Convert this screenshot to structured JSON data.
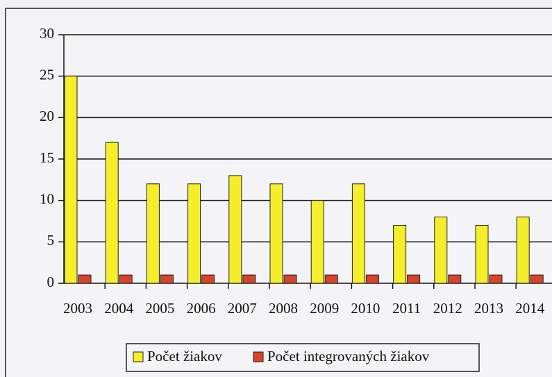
{
  "chart_data": {
    "type": "bar",
    "categories": [
      "2003",
      "2004",
      "2005",
      "2006",
      "2007",
      "2008",
      "2009",
      "2010",
      "2011",
      "2012",
      "2013",
      "2014"
    ],
    "series": [
      {
        "name": "Počet žiakov",
        "color": "#f5ee2a",
        "values": [
          25,
          17,
          12,
          12,
          13,
          12,
          10,
          12,
          7,
          8,
          7,
          8
        ]
      },
      {
        "name": "Počet integrovaných žiakov",
        "color": "#d9432a",
        "values": [
          1,
          1,
          1,
          1,
          1,
          1,
          1,
          1,
          1,
          1,
          1,
          1
        ]
      }
    ],
    "ylim": [
      0,
      30
    ],
    "yticks": [
      0,
      5,
      10,
      15,
      20,
      25,
      30
    ],
    "grid": true,
    "legend": "bottom"
  }
}
